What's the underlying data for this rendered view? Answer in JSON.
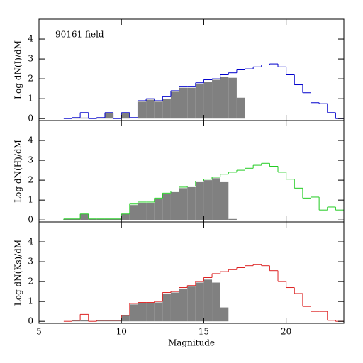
{
  "chart_data": [
    {
      "type": "histogram",
      "annotation": "90161 field",
      "ylabel": "Log dN(I)/dM",
      "bins": [
        6.5,
        7,
        7.5,
        8,
        8.5,
        9,
        9.5,
        10,
        10.5,
        11,
        11.5,
        12,
        12.5,
        13,
        13.5,
        14,
        14.5,
        15,
        15.5,
        16,
        16.5,
        17,
        17.5,
        18,
        18.5,
        19,
        19.5,
        20,
        20.5,
        21,
        21.5,
        22,
        22.5,
        23,
        23.5
      ],
      "series": [
        {
          "color": "#808080",
          "fill": true,
          "values": [
            0,
            0.05,
            0.05,
            0,
            0.05,
            0.3,
            0,
            0.3,
            0,
            0.85,
            0.95,
            0.85,
            1.0,
            1.35,
            1.55,
            1.55,
            1.75,
            1.85,
            1.95,
            2.1,
            2.05,
            1.05,
            0,
            0,
            0,
            0,
            0,
            0,
            0,
            0,
            0,
            0,
            0,
            0
          ]
        },
        {
          "color": "#0000cc",
          "fill": false,
          "values": [
            0,
            0.05,
            0.3,
            0,
            0.05,
            0.3,
            0,
            0.3,
            0.05,
            0.9,
            1.0,
            0.9,
            1.1,
            1.4,
            1.6,
            1.6,
            1.8,
            1.95,
            2.0,
            2.2,
            2.3,
            2.45,
            2.5,
            2.6,
            2.7,
            2.75,
            2.6,
            2.2,
            1.7,
            1.3,
            0.8,
            0.75,
            0.3,
            0
          ]
        }
      ],
      "xlim": [
        5,
        23.5
      ],
      "xticks": [
        5,
        10,
        15,
        20
      ],
      "ylim": [
        -0.1,
        5.0
      ],
      "yticks": [
        0,
        1,
        2,
        3,
        4
      ],
      "xtick_labels": false
    },
    {
      "type": "histogram",
      "ylabel": "Log dN(H)/dM",
      "bins": [
        6.5,
        7,
        7.5,
        8,
        8.5,
        9,
        9.5,
        10,
        10.5,
        11,
        11.5,
        12,
        12.5,
        13,
        13.5,
        14,
        14.5,
        15,
        15.5,
        16,
        16.5,
        17,
        17.5,
        18,
        18.5,
        19,
        19.5,
        20,
        20.5,
        21,
        21.5,
        22,
        22.5,
        23,
        23.5
      ],
      "series": [
        {
          "color": "#808080",
          "fill": true,
          "values": [
            0.05,
            0.05,
            0.3,
            0.05,
            0.05,
            0.05,
            0.05,
            0.3,
            0.75,
            0.85,
            0.85,
            1.05,
            1.3,
            1.4,
            1.6,
            1.65,
            1.9,
            2.0,
            2.1,
            1.9,
            0.05,
            0,
            0,
            0,
            0,
            0,
            0,
            0,
            0,
            0,
            0,
            0,
            0,
            0
          ]
        },
        {
          "color": "#22cc22",
          "fill": false,
          "values": [
            0.05,
            0.05,
            0.3,
            0.05,
            0.05,
            0.05,
            0.05,
            0.3,
            0.8,
            0.9,
            0.9,
            1.1,
            1.35,
            1.45,
            1.65,
            1.7,
            1.95,
            2.05,
            2.15,
            2.3,
            2.4,
            2.5,
            2.6,
            2.75,
            2.85,
            2.7,
            2.4,
            2.05,
            1.6,
            1.1,
            1.15,
            0.5,
            0.65,
            0.5
          ]
        }
      ],
      "xlim": [
        5,
        23.5
      ],
      "xticks": [
        5,
        10,
        15,
        20
      ],
      "ylim": [
        -0.1,
        5.0
      ],
      "yticks": [
        0,
        1,
        2,
        3,
        4
      ],
      "xtick_labels": false
    },
    {
      "type": "histogram",
      "ylabel": "Log dN(Ks)/dM",
      "xlabel": "Magnitude",
      "bins": [
        6.5,
        7,
        7.5,
        8,
        8.5,
        9,
        9.5,
        10,
        10.5,
        11,
        11.5,
        12,
        12.5,
        13,
        13.5,
        14,
        14.5,
        15,
        15.5,
        16,
        16.5,
        17,
        17.5,
        18,
        18.5,
        19,
        19.5,
        20,
        20.5,
        21,
        21.5,
        22,
        22.5,
        23,
        23.5
      ],
      "series": [
        {
          "color": "#808080",
          "fill": true,
          "values": [
            0,
            0.05,
            0.05,
            0,
            0.05,
            0.05,
            0.05,
            0.3,
            0.85,
            0.9,
            0.9,
            0.95,
            1.4,
            1.45,
            1.65,
            1.75,
            1.95,
            2.1,
            1.95,
            0.7,
            0,
            0,
            0,
            0,
            0,
            0,
            0,
            0,
            0,
            0,
            0,
            0,
            0,
            0
          ]
        },
        {
          "color": "#dd2222",
          "fill": false,
          "values": [
            0,
            0.05,
            0.35,
            0,
            0.05,
            0.05,
            0.05,
            0.3,
            0.9,
            0.95,
            0.95,
            1.0,
            1.45,
            1.5,
            1.7,
            1.8,
            2.0,
            2.2,
            2.4,
            2.5,
            2.6,
            2.7,
            2.8,
            2.85,
            2.8,
            2.55,
            2.0,
            1.7,
            1.4,
            0.75,
            0.5,
            0.5,
            0.05,
            0
          ]
        }
      ],
      "xlim": [
        5,
        23.5
      ],
      "xticks": [
        5,
        10,
        15,
        20
      ],
      "ylim": [
        -0.1,
        5.0
      ],
      "yticks": [
        0,
        1,
        2,
        3,
        4
      ],
      "xtick_labels": true
    }
  ]
}
